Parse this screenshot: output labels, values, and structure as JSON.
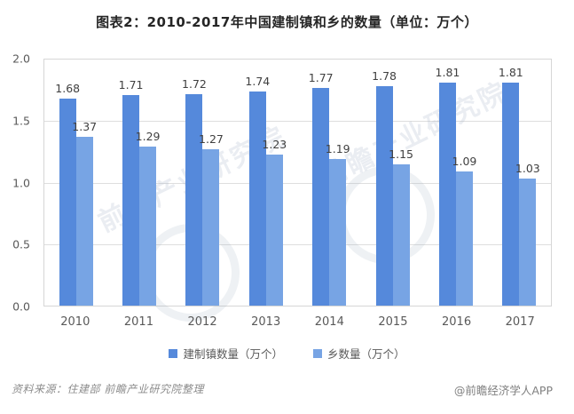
{
  "title": "图表2：2010-2017年中国建制镇和乡的数量（单位：万个）",
  "chart_data": {
    "type": "bar",
    "categories": [
      "2010",
      "2011",
      "2012",
      "2013",
      "2014",
      "2015",
      "2016",
      "2017"
    ],
    "series": [
      {
        "name": "建制镇数量（万个）",
        "color": "#5589DB",
        "values": [
          1.68,
          1.71,
          1.72,
          1.74,
          1.77,
          1.78,
          1.81,
          1.81
        ]
      },
      {
        "name": "乡数量（万个）",
        "color": "#77A4E4",
        "values": [
          1.37,
          1.29,
          1.27,
          1.23,
          1.19,
          1.15,
          1.09,
          1.03
        ]
      }
    ],
    "title": "图表2：2010-2017年中国建制镇和乡的数量（单位：万个）",
    "xlabel": "",
    "ylabel": "",
    "ylim": [
      0,
      2.0
    ],
    "yticks": [
      "2.0",
      "1.5",
      "1.0",
      "0.5",
      "0.0"
    ],
    "grid": true,
    "legend_position": "bottom",
    "data_labels": true
  },
  "footer": {
    "source": "资料来源：住建部  前瞻产业研究院整理",
    "credit": "@前瞻经济学人APP"
  },
  "watermark": {
    "text": "前瞻产业研究院"
  },
  "colors": {
    "series1": "#5589DB",
    "series2": "#77A4E4",
    "grid": "#DEDEDE",
    "border": "#D6D6D6",
    "axis_text": "#595959",
    "value_label": "#404040",
    "title_text": "#262626",
    "source_text": "#8C8C8C"
  }
}
